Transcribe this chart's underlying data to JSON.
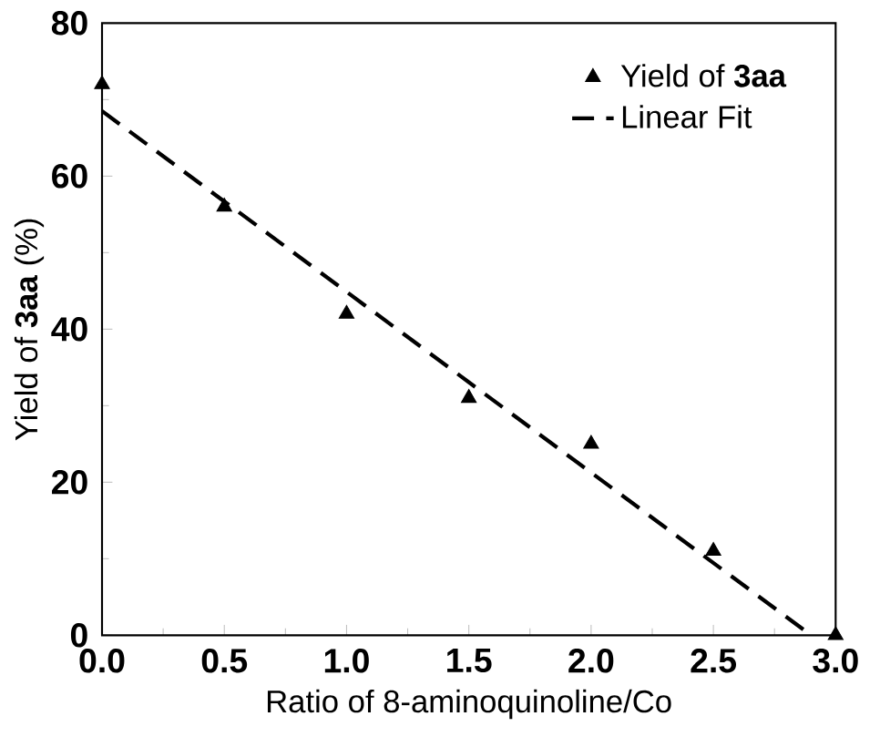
{
  "chart_data": {
    "type": "scatter",
    "xlabel": "Ratio of 8-aminoquinoline/Co",
    "ylabel": "Yield of **3aa** (%)",
    "xlim": [
      0,
      3
    ],
    "ylim": [
      0,
      80
    ],
    "xticks": [
      {
        "value": 0,
        "label": "0.0"
      },
      0.5,
      {
        "value": 1,
        "label": "1.0"
      },
      1.5,
      {
        "value": 2,
        "label": "2.0"
      },
      2.5,
      {
        "value": 3,
        "label": "3.0"
      }
    ],
    "yticks": [
      0,
      20,
      40,
      60,
      80
    ],
    "legend": "top right",
    "grid": false,
    "series": [
      {
        "name": "Yield of **3aa**",
        "color": "#000000",
        "marker": "triangle",
        "x": [
          0,
          0.5,
          1,
          1.5,
          2,
          2.5,
          3
        ],
        "values": [
          72,
          56,
          42,
          31,
          25,
          11,
          0
        ]
      },
      {
        "name": "Linear Fit",
        "type": "line",
        "color": "#000000",
        "line_style": "dashed",
        "marker": "none",
        "x": [
          0,
          2.9
        ],
        "values": [
          68.5,
          0
        ]
      }
    ]
  }
}
